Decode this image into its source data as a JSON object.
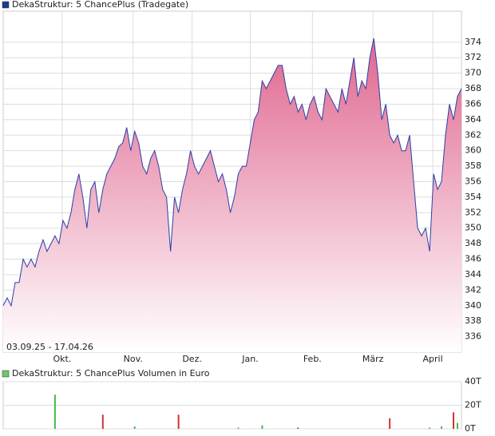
{
  "chart_data": [
    {
      "type": "area",
      "title": "DekaStruktur: 5 ChancePlus (Tradegate)",
      "date_range": "03.09.25 - 17.04.26",
      "color": "#e0668f",
      "line_color": "#2a3fa8",
      "legend_color": "#1f3a93",
      "values": [
        340,
        341,
        340,
        343,
        343,
        346,
        345,
        346,
        345,
        347,
        348.5,
        347,
        348,
        349,
        348,
        351,
        350,
        352,
        355,
        357,
        354,
        350,
        355,
        356,
        352,
        355,
        357,
        358,
        359,
        360.5,
        361,
        363,
        360,
        362.5,
        361,
        358,
        357,
        359,
        360,
        358,
        355,
        354,
        347,
        354,
        352,
        355,
        357,
        360,
        358,
        357,
        358,
        359,
        360,
        358,
        356,
        357,
        355,
        352,
        354,
        357,
        358,
        358,
        361,
        364,
        365,
        369,
        368,
        369,
        370,
        371,
        371,
        368,
        366,
        367,
        365,
        366,
        364,
        366,
        367,
        365,
        364,
        368,
        367,
        366,
        365,
        368,
        366,
        369,
        372,
        367,
        369,
        368,
        372,
        374.5,
        370,
        364,
        366,
        362,
        361,
        362,
        360,
        360,
        362,
        356,
        350,
        349,
        350,
        347,
        357,
        355,
        356,
        362,
        366,
        364,
        367,
        368
      ],
      "xlim": [
        0,
        115
      ],
      "xticks": [
        {
          "value": 14.8,
          "label": "Okt."
        },
        {
          "value": 32.6,
          "label": "Nov."
        },
        {
          "value": 47.4,
          "label": "Dez."
        },
        {
          "value": 62,
          "label": "Jan."
        },
        {
          "value": 77.6,
          "label": "Feb."
        },
        {
          "value": 92.8,
          "label": "März"
        },
        {
          "value": 107.8,
          "label": "April"
        }
      ],
      "ylim": [
        334,
        378
      ],
      "yticks": [
        336,
        338,
        340,
        342,
        344,
        346,
        348,
        350,
        352,
        354,
        356,
        358,
        360,
        362,
        364,
        366,
        368,
        370,
        372,
        374
      ],
      "grid": true
    },
    {
      "type": "bar",
      "title": "DekaStruktur: 5 ChancePlus Volumen in Euro",
      "legend_color": "#66cc66",
      "x": [
        13,
        25,
        33,
        44,
        59,
        65,
        74,
        97,
        107,
        110,
        113,
        114
      ],
      "values": [
        29,
        12,
        2,
        12,
        1,
        3,
        1,
        9,
        1,
        2,
        14,
        5
      ],
      "colors": [
        "#44bb44",
        "#cc3333",
        "#44bb44",
        "#cc3333",
        "#44bb44",
        "#44bb44",
        "#cc3333",
        "#cc3333",
        "#44bb44",
        "#44bb44",
        "#cc3333",
        "#44bb44"
      ],
      "xlim": [
        0,
        115
      ],
      "ylim": [
        0,
        40
      ],
      "yticks": [
        {
          "value": 0,
          "label": "0T"
        },
        {
          "value": 20,
          "label": "20T"
        },
        {
          "value": 40,
          "label": "40T"
        }
      ],
      "grid": true
    }
  ]
}
